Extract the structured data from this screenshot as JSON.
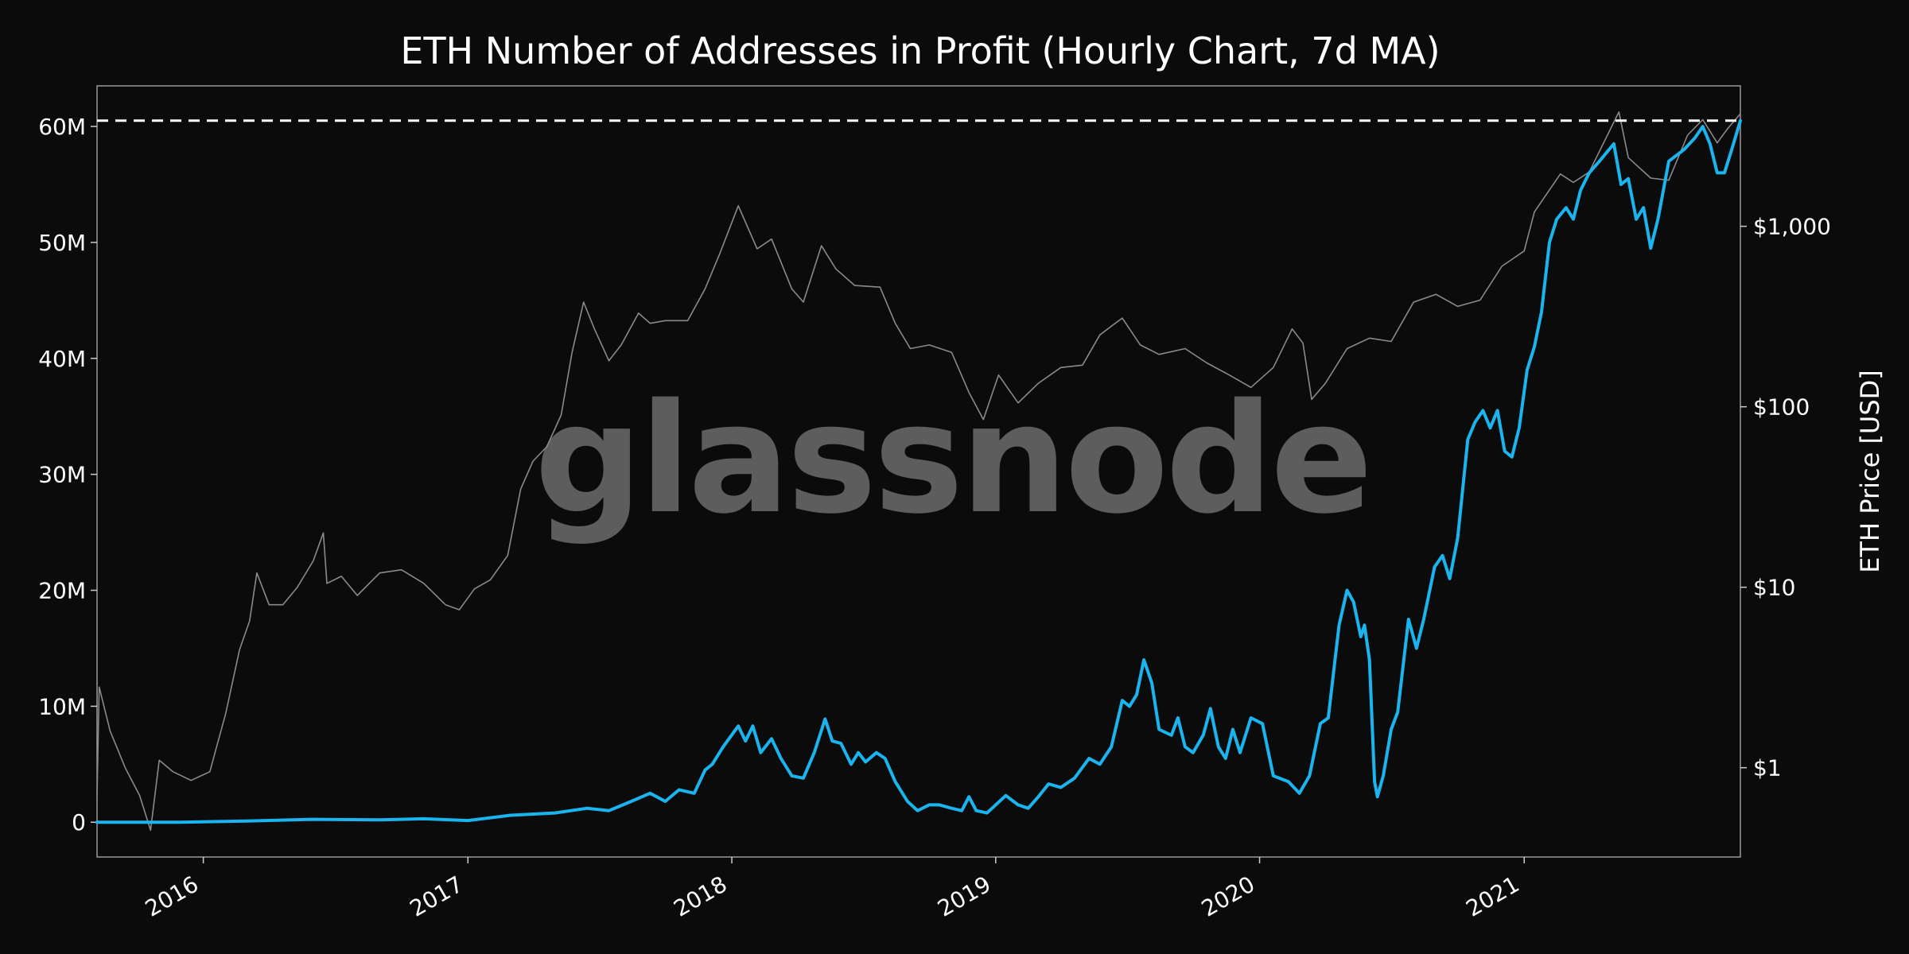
{
  "chart_data": {
    "type": "line",
    "title": "ETH Number of Addresses in Profit (Hourly Chart, 7d MA)",
    "watermark": "glassnode",
    "x_range": [
      "2015-08-07",
      "2021-10-27"
    ],
    "x_ticks": [
      "2016",
      "2017",
      "2018",
      "2019",
      "2020",
      "2021"
    ],
    "y_left": {
      "ticks": [
        "0",
        "10M",
        "20M",
        "30M",
        "40M",
        "50M",
        "60M"
      ],
      "tick_values": [
        0,
        10,
        20,
        30,
        40,
        50,
        60
      ],
      "unit": "millions",
      "range": [
        -3,
        63.5
      ]
    },
    "y_right": {
      "label": "ETH Price [USD]",
      "ticks": [
        "$1",
        "$10",
        "$100",
        "$1,000"
      ],
      "tick_values": [
        1,
        10,
        100,
        1000
      ],
      "scale": "log",
      "range": [
        0.32,
        6000
      ]
    },
    "ath_line": {
      "value": 60.5,
      "style": "dashed",
      "color": "#ffffff"
    },
    "grid": false,
    "legend": "none",
    "series": [
      {
        "name": "Addresses in Profit",
        "axis": "left",
        "color": "#1ab4ee",
        "points": [
          [
            "2015-08-07",
            0
          ],
          [
            "2015-12-01",
            0
          ],
          [
            "2016-03-01",
            0.1
          ],
          [
            "2016-06-01",
            0.25
          ],
          [
            "2016-09-01",
            0.2
          ],
          [
            "2016-11-01",
            0.3
          ],
          [
            "2017-01-01",
            0.15
          ],
          [
            "2017-03-01",
            0.6
          ],
          [
            "2017-05-01",
            0.8
          ],
          [
            "2017-06-15",
            1.2
          ],
          [
            "2017-07-15",
            1.0
          ],
          [
            "2017-08-15",
            1.8
          ],
          [
            "2017-09-10",
            2.5
          ],
          [
            "2017-10-01",
            1.8
          ],
          [
            "2017-10-20",
            2.8
          ],
          [
            "2017-11-10",
            2.5
          ],
          [
            "2017-11-25",
            4.5
          ],
          [
            "2017-12-05",
            5.0
          ],
          [
            "2017-12-20",
            6.5
          ],
          [
            "2018-01-10",
            8.3
          ],
          [
            "2018-01-20",
            7.0
          ],
          [
            "2018-01-30",
            8.3
          ],
          [
            "2018-02-10",
            6.0
          ],
          [
            "2018-02-25",
            7.2
          ],
          [
            "2018-03-10",
            5.5
          ],
          [
            "2018-03-25",
            4.0
          ],
          [
            "2018-04-10",
            3.8
          ],
          [
            "2018-04-25",
            6.0
          ],
          [
            "2018-05-10",
            8.9
          ],
          [
            "2018-05-20",
            7.0
          ],
          [
            "2018-06-01",
            6.8
          ],
          [
            "2018-06-15",
            5.0
          ],
          [
            "2018-06-25",
            6.0
          ],
          [
            "2018-07-05",
            5.2
          ],
          [
            "2018-07-20",
            6.0
          ],
          [
            "2018-08-01",
            5.5
          ],
          [
            "2018-08-15",
            3.5
          ],
          [
            "2018-09-01",
            1.8
          ],
          [
            "2018-09-15",
            1.0
          ],
          [
            "2018-10-01",
            1.5
          ],
          [
            "2018-10-15",
            1.5
          ],
          [
            "2018-11-01",
            1.2
          ],
          [
            "2018-11-15",
            1.0
          ],
          [
            "2018-11-25",
            2.2
          ],
          [
            "2018-12-05",
            1.0
          ],
          [
            "2018-12-20",
            0.8
          ],
          [
            "2019-01-01",
            1.5
          ],
          [
            "2019-01-15",
            2.3
          ],
          [
            "2019-02-01",
            1.5
          ],
          [
            "2019-02-15",
            1.2
          ],
          [
            "2019-03-01",
            2.2
          ],
          [
            "2019-03-15",
            3.3
          ],
          [
            "2019-04-01",
            3.0
          ],
          [
            "2019-04-20",
            3.8
          ],
          [
            "2019-05-10",
            5.5
          ],
          [
            "2019-05-25",
            5.0
          ],
          [
            "2019-06-10",
            6.5
          ],
          [
            "2019-06-25",
            10.5
          ],
          [
            "2019-07-05",
            10.0
          ],
          [
            "2019-07-15",
            11.0
          ],
          [
            "2019-07-25",
            14.0
          ],
          [
            "2019-08-05",
            12.0
          ],
          [
            "2019-08-15",
            8.0
          ],
          [
            "2019-09-01",
            7.5
          ],
          [
            "2019-09-10",
            9.0
          ],
          [
            "2019-09-20",
            6.5
          ],
          [
            "2019-10-01",
            6.0
          ],
          [
            "2019-10-15",
            7.5
          ],
          [
            "2019-10-25",
            9.8
          ],
          [
            "2019-11-05",
            6.5
          ],
          [
            "2019-11-15",
            5.5
          ],
          [
            "2019-11-25",
            8.0
          ],
          [
            "2019-12-05",
            6.0
          ],
          [
            "2019-12-20",
            9.0
          ],
          [
            "2020-01-05",
            8.5
          ],
          [
            "2020-01-20",
            4.0
          ],
          [
            "2020-02-10",
            3.5
          ],
          [
            "2020-02-25",
            2.5
          ],
          [
            "2020-03-10",
            4.0
          ],
          [
            "2020-03-25",
            8.5
          ],
          [
            "2020-04-05",
            9.0
          ],
          [
            "2020-04-20",
            17.0
          ],
          [
            "2020-05-01",
            20.0
          ],
          [
            "2020-05-10",
            19.0
          ],
          [
            "2020-05-20",
            16.0
          ],
          [
            "2020-05-25",
            17.0
          ],
          [
            "2020-06-01",
            14.0
          ],
          [
            "2020-06-08",
            3.5
          ],
          [
            "2020-06-12",
            2.2
          ],
          [
            "2020-06-20",
            4.0
          ],
          [
            "2020-07-01",
            8.0
          ],
          [
            "2020-07-10",
            9.5
          ],
          [
            "2020-07-25",
            17.5
          ],
          [
            "2020-08-05",
            15.0
          ],
          [
            "2020-08-15",
            17.5
          ],
          [
            "2020-08-30",
            22.0
          ],
          [
            "2020-09-10",
            23.0
          ],
          [
            "2020-09-20",
            21.0
          ],
          [
            "2020-10-01",
            24.5
          ],
          [
            "2020-10-15",
            33.0
          ],
          [
            "2020-10-25",
            34.5
          ],
          [
            "2020-11-05",
            35.5
          ],
          [
            "2020-11-15",
            34.0
          ],
          [
            "2020-11-25",
            35.5
          ],
          [
            "2020-12-05",
            32.0
          ],
          [
            "2020-12-15",
            31.5
          ],
          [
            "2020-12-25",
            34.0
          ],
          [
            "2021-01-05",
            39.0
          ],
          [
            "2021-01-15",
            41.0
          ],
          [
            "2021-01-25",
            44.0
          ],
          [
            "2021-02-05",
            50.0
          ],
          [
            "2021-02-15",
            52.0
          ],
          [
            "2021-02-28",
            53.0
          ],
          [
            "2021-03-10",
            52.0
          ],
          [
            "2021-03-20",
            54.5
          ],
          [
            "2021-04-01",
            56.0
          ],
          [
            "2021-04-15",
            57.0
          ],
          [
            "2021-05-05",
            58.5
          ],
          [
            "2021-05-15",
            55.0
          ],
          [
            "2021-05-25",
            55.5
          ],
          [
            "2021-06-05",
            52.0
          ],
          [
            "2021-06-15",
            53.0
          ],
          [
            "2021-06-25",
            49.5
          ],
          [
            "2021-07-05",
            52.0
          ],
          [
            "2021-07-20",
            57.0
          ],
          [
            "2021-08-10",
            58.0
          ],
          [
            "2021-08-25",
            59.0
          ],
          [
            "2021-09-05",
            60.0
          ],
          [
            "2021-09-15",
            58.5
          ],
          [
            "2021-09-25",
            56.0
          ],
          [
            "2021-10-05",
            56.0
          ],
          [
            "2021-10-15",
            58.0
          ],
          [
            "2021-10-27",
            60.5
          ]
        ]
      },
      {
        "name": "ETH Price",
        "axis": "right",
        "color": "#8a8a8a",
        "points": [
          [
            "2015-08-07",
            0.7
          ],
          [
            "2015-08-10",
            2.8
          ],
          [
            "2015-08-25",
            1.6
          ],
          [
            "2015-09-15",
            1.0
          ],
          [
            "2015-10-05",
            0.7
          ],
          [
            "2015-10-20",
            0.45
          ],
          [
            "2015-11-01",
            1.1
          ],
          [
            "2015-11-20",
            0.95
          ],
          [
            "2015-12-15",
            0.85
          ],
          [
            "2016-01-10",
            0.95
          ],
          [
            "2016-02-01",
            2.0
          ],
          [
            "2016-02-20",
            4.5
          ],
          [
            "2016-03-05",
            6.5
          ],
          [
            "2016-03-15",
            12.0
          ],
          [
            "2016-04-01",
            8.0
          ],
          [
            "2016-04-20",
            8.0
          ],
          [
            "2016-05-10",
            10.0
          ],
          [
            "2016-06-01",
            14.0
          ],
          [
            "2016-06-15",
            20.0
          ],
          [
            "2016-06-20",
            10.5
          ],
          [
            "2016-07-10",
            11.5
          ],
          [
            "2016-08-01",
            9.0
          ],
          [
            "2016-09-01",
            12.0
          ],
          [
            "2016-10-01",
            12.5
          ],
          [
            "2016-11-01",
            10.5
          ],
          [
            "2016-12-01",
            8.0
          ],
          [
            "2016-12-20",
            7.5
          ],
          [
            "2017-01-10",
            9.8
          ],
          [
            "2017-02-01",
            11.0
          ],
          [
            "2017-02-25",
            15.0
          ],
          [
            "2017-03-15",
            35.0
          ],
          [
            "2017-04-01",
            50.0
          ],
          [
            "2017-04-20",
            60.0
          ],
          [
            "2017-05-10",
            90.0
          ],
          [
            "2017-05-25",
            200.0
          ],
          [
            "2017-06-10",
            380.0
          ],
          [
            "2017-06-25",
            270.0
          ],
          [
            "2017-07-15",
            180.0
          ],
          [
            "2017-08-01",
            220.0
          ],
          [
            "2017-08-25",
            330.0
          ],
          [
            "2017-09-10",
            290.0
          ],
          [
            "2017-10-01",
            300.0
          ],
          [
            "2017-11-01",
            300.0
          ],
          [
            "2017-11-25",
            450.0
          ],
          [
            "2017-12-15",
            700.0
          ],
          [
            "2018-01-10",
            1300.0
          ],
          [
            "2018-02-05",
            750.0
          ],
          [
            "2018-02-25",
            850.0
          ],
          [
            "2018-03-25",
            450.0
          ],
          [
            "2018-04-10",
            380.0
          ],
          [
            "2018-05-05",
            780.0
          ],
          [
            "2018-05-25",
            580.0
          ],
          [
            "2018-06-20",
            470.0
          ],
          [
            "2018-07-25",
            460.0
          ],
          [
            "2018-08-15",
            290.0
          ],
          [
            "2018-09-05",
            210.0
          ],
          [
            "2018-10-01",
            220.0
          ],
          [
            "2018-11-01",
            200.0
          ],
          [
            "2018-11-25",
            120.0
          ],
          [
            "2018-12-15",
            85.0
          ],
          [
            "2019-01-05",
            150.0
          ],
          [
            "2019-02-01",
            105.0
          ],
          [
            "2019-03-01",
            135.0
          ],
          [
            "2019-04-01",
            165.0
          ],
          [
            "2019-05-01",
            170.0
          ],
          [
            "2019-05-25",
            250.0
          ],
          [
            "2019-06-25",
            310.0
          ],
          [
            "2019-07-20",
            220.0
          ],
          [
            "2019-08-15",
            195.0
          ],
          [
            "2019-09-20",
            210.0
          ],
          [
            "2019-10-20",
            175.0
          ],
          [
            "2019-11-20",
            150.0
          ],
          [
            "2019-12-20",
            128.0
          ],
          [
            "2020-01-20",
            165.0
          ],
          [
            "2020-02-15",
            270.0
          ],
          [
            "2020-03-01",
            225.0
          ],
          [
            "2020-03-13",
            110.0
          ],
          [
            "2020-04-01",
            135.0
          ],
          [
            "2020-05-01",
            210.0
          ],
          [
            "2020-06-01",
            240.0
          ],
          [
            "2020-07-01",
            230.0
          ],
          [
            "2020-08-01",
            380.0
          ],
          [
            "2020-09-01",
            420.0
          ],
          [
            "2020-10-01",
            360.0
          ],
          [
            "2020-11-01",
            390.0
          ],
          [
            "2020-12-01",
            600.0
          ],
          [
            "2021-01-01",
            730.0
          ],
          [
            "2021-01-15",
            1200.0
          ],
          [
            "2021-02-20",
            1950.0
          ],
          [
            "2021-03-10",
            1750.0
          ],
          [
            "2021-04-01",
            2000.0
          ],
          [
            "2021-05-12",
            4300.0
          ],
          [
            "2021-05-25",
            2400.0
          ],
          [
            "2021-06-25",
            1850.0
          ],
          [
            "2021-07-20",
            1800.0
          ],
          [
            "2021-08-15",
            3200.0
          ],
          [
            "2021-09-05",
            3900.0
          ],
          [
            "2021-09-25",
            2900.0
          ],
          [
            "2021-10-10",
            3500.0
          ],
          [
            "2021-10-27",
            4200.0
          ]
        ]
      }
    ]
  }
}
